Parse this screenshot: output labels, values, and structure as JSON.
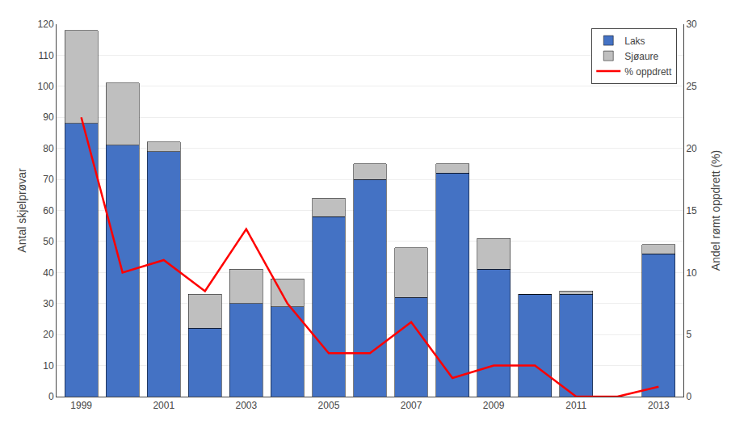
{
  "chart_data": {
    "type": "bar",
    "stacked": true,
    "x": [
      1999,
      2000,
      2001,
      2002,
      2003,
      2004,
      2005,
      2006,
      2007,
      2008,
      2009,
      2010,
      2011,
      2012,
      2013
    ],
    "xlim": [
      1998.4,
      2013.6
    ],
    "xticks": [
      1999,
      2001,
      2003,
      2005,
      2007,
      2009,
      2011,
      2013
    ],
    "ylabel": "Antal skjelprøvar",
    "ylim": [
      0,
      120
    ],
    "yticks": [
      0,
      10,
      20,
      30,
      40,
      50,
      60,
      70,
      80,
      90,
      100,
      110,
      120
    ],
    "y2label": "Andel rømt oppdrett (%)",
    "y2lim": [
      0,
      30
    ],
    "y2ticks": [
      0,
      5,
      10,
      15,
      20,
      25,
      30
    ],
    "grid": true,
    "legend": "upper right",
    "series": [
      {
        "name": "Laks",
        "color": "#4472C4",
        "values": [
          88,
          81,
          79,
          22,
          30,
          29,
          58,
          70,
          32,
          72,
          41,
          33,
          33,
          0,
          46
        ]
      },
      {
        "name": "Sjøaure",
        "color": "#BFBFBF",
        "values": [
          30,
          20,
          3,
          11,
          11,
          9,
          6,
          5,
          16,
          3,
          10,
          0,
          1,
          0,
          3
        ]
      },
      {
        "name": "% oppdrett",
        "type": "line",
        "axis": "y2",
        "color": "#FF0000",
        "values": [
          22.5,
          10.0,
          11.0,
          8.5,
          13.5,
          7.5,
          3.5,
          3.5,
          6.0,
          1.5,
          2.5,
          2.5,
          0.0,
          0.0,
          0.8
        ]
      }
    ]
  }
}
